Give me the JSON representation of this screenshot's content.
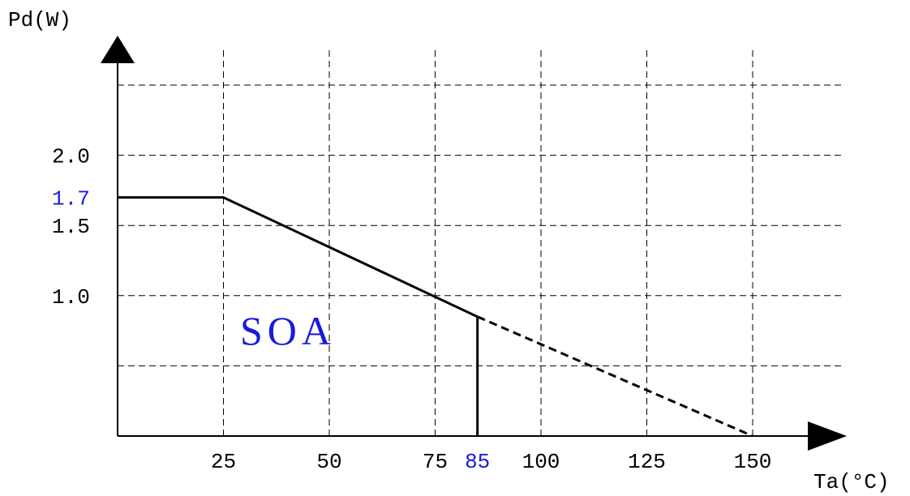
{
  "chart_data": {
    "type": "line",
    "title": "",
    "xlabel": "Ta(°C)",
    "ylabel": "Pd(W)",
    "x_ticks": [
      {
        "value": 25,
        "label": "25"
      },
      {
        "value": 50,
        "label": "50"
      },
      {
        "value": 75,
        "label": "75"
      },
      {
        "value": 85,
        "label": "85",
        "color": "#1a1adc"
      },
      {
        "value": 100,
        "label": "100"
      },
      {
        "value": 125,
        "label": "125"
      },
      {
        "value": 150,
        "label": "150"
      }
    ],
    "y_ticks": [
      {
        "value": 1.7,
        "label": "1.7",
        "color": "#1a1adc"
      },
      {
        "value": 1.5,
        "label": "1.5"
      },
      {
        "value": 1.0,
        "label": "1.0"
      },
      {
        "value": 2.0,
        "label": "2.0"
      }
    ],
    "x_grid": [
      25,
      50,
      75,
      100,
      125,
      150
    ],
    "y_grid": [
      0.5,
      1.0,
      1.5,
      2.0,
      2.5
    ],
    "xlim": [
      0,
      170
    ],
    "ylim": [
      0,
      2.5
    ],
    "grid": true,
    "series": [
      {
        "style": "solid",
        "x": [
          0,
          25,
          85
        ],
        "y": [
          1.7,
          1.7,
          0.85
        ]
      },
      {
        "style": "dashed",
        "x": [
          85,
          150
        ],
        "y": [
          0.85,
          0
        ]
      },
      {
        "style": "solid",
        "x": [
          85,
          85
        ],
        "y": [
          0.85,
          0
        ]
      }
    ],
    "annotation": {
      "text": "SOA",
      "x": 50,
      "y": 0.7
    }
  }
}
